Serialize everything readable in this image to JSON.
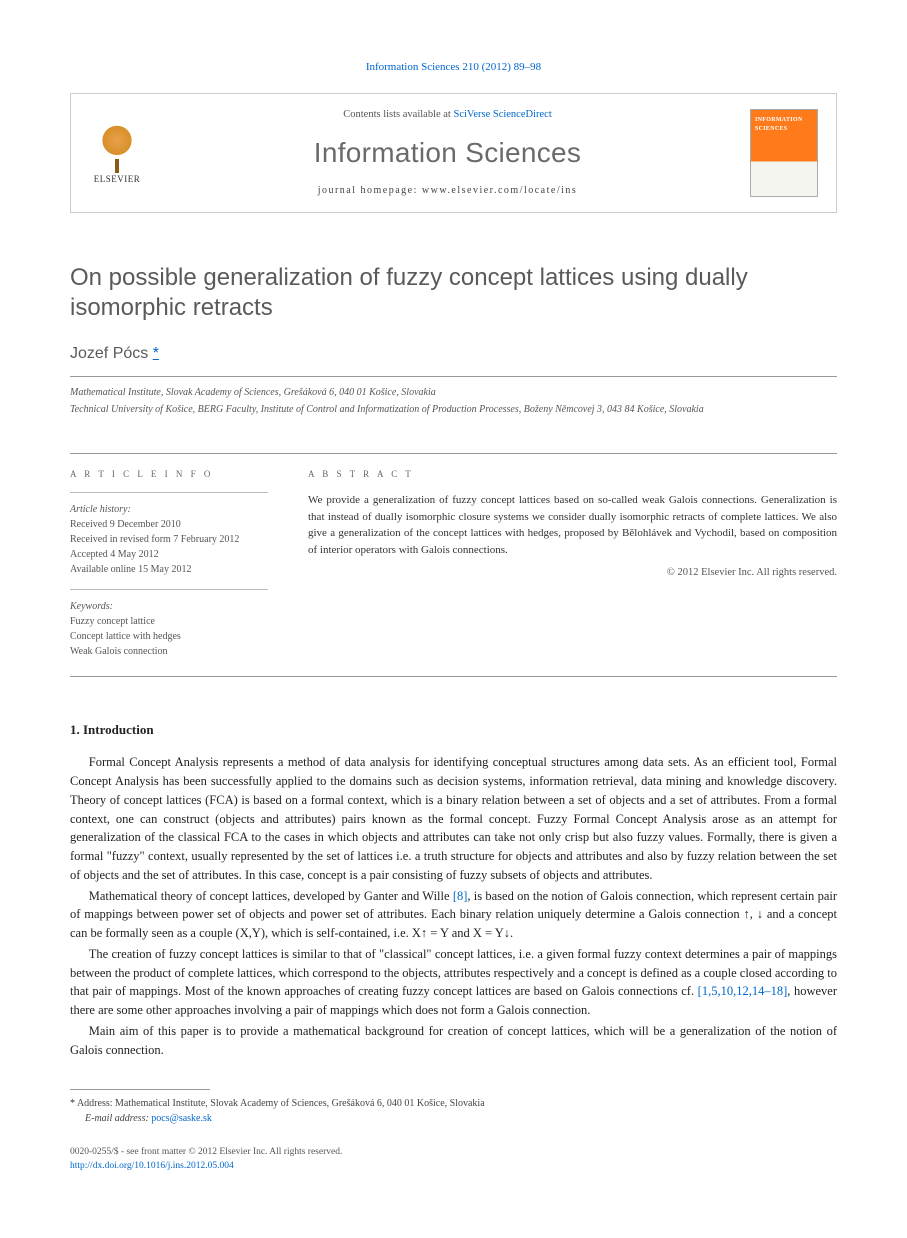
{
  "citation": "Information Sciences 210 (2012) 89–98",
  "header": {
    "contents_prefix": "Contents lists available at ",
    "contents_link": "SciVerse ScienceDirect",
    "journal": "Information Sciences",
    "homepage_label": "journal homepage: www.elsevier.com/locate/ins",
    "publisher": "ELSEVIER",
    "cover_title": "INFORMATION SCIENCES"
  },
  "title": "On possible generalization of fuzzy concept lattices using dually isomorphic retracts",
  "author": "Jozef Pócs",
  "author_mark": "*",
  "affiliations": [
    "Mathematical Institute, Slovak Academy of Sciences, Grešáková 6, 040 01 Košice, Slovakia",
    "Technical University of Košice, BERG Faculty, Institute of Control and Informatization of Production Processes, Boženy Němcovej 3, 043 84 Košice, Slovakia"
  ],
  "article_info": {
    "heading": "A R T I C L E   I N F O",
    "history_label": "Article history:",
    "history": [
      "Received 9 December 2010",
      "Received in revised form 7 February 2012",
      "Accepted 4 May 2012",
      "Available online 15 May 2012"
    ],
    "keywords_label": "Keywords:",
    "keywords": [
      "Fuzzy concept lattice",
      "Concept lattice with hedges",
      "Weak Galois connection"
    ]
  },
  "abstract": {
    "heading": "A B S T R A C T",
    "text": "We provide a generalization of fuzzy concept lattices based on so-called weak Galois connections. Generalization is that instead of dually isomorphic closure systems we consider dually isomorphic retracts of complete lattices. We also give a generalization of the concept lattices with hedges, proposed by Bělohlávek and Vychodil, based on composition of interior operators with Galois connections.",
    "copyright": "© 2012 Elsevier Inc. All rights reserved."
  },
  "section1": {
    "heading": "1. Introduction",
    "p1_a": "Formal Concept Analysis represents a method of data analysis for identifying conceptual structures among data sets. As an efficient tool, Formal Concept Analysis has been successfully applied to the domains such as decision systems, information retrieval, data mining and knowledge discovery. Theory of concept lattices (FCA) is based on a formal context, which is a binary relation between a set of objects and a set of attributes. From a formal context, one can construct (objects and attributes) pairs known as the formal concept. Fuzzy Formal Concept Analysis arose as an attempt for generalization of the classical FCA to the cases in which objects and attributes can take not only crisp but also fuzzy values. Formally, there is given a formal \"fuzzy\" context, usually represented by the set of lattices i.e. a truth structure for objects and attributes and also by fuzzy relation between the set of objects and the set of attributes. In this case, concept is a pair consisting of fuzzy subsets of objects and attributes.",
    "p2_a": "Mathematical theory of concept lattices, developed by Ganter and Wille ",
    "p2_ref": "[8]",
    "p2_b": ", is based on the notion of Galois connection, which represent certain pair of mappings between power set of objects and power set of attributes. Each binary relation uniquely determine a Galois connection ↑, ↓ and a concept can be formally seen as a couple (X,Y), which is self-contained, i.e. X↑ = Y and X = Y↓.",
    "p3_a": "The creation of fuzzy concept lattices is similar to that of \"classical\" concept lattices, i.e. a given formal fuzzy context determines a pair of mappings between the product of complete lattices, which correspond to the objects, attributes respectively and a concept is defined as a couple closed according to that pair of mappings. Most of the known approaches of creating fuzzy concept lattices are based on Galois connections cf. ",
    "p3_ref": "[1,5,10,12,14–18]",
    "p3_b": ", however there are some other approaches involving a pair of mappings which does not form a Galois connection.",
    "p4": "Main aim of this paper is to provide a mathematical background for creation of concept lattices, which will be a generalization of the notion of Galois connection."
  },
  "footnote": {
    "mark": "*",
    "address_label": "Address: ",
    "address": "Mathematical Institute, Slovak Academy of Sciences, Grešáková 6, 040 01 Košice, Slovakia",
    "email_label": "E-mail address: ",
    "email": "pocs@saske.sk"
  },
  "bottom": {
    "line1": "0020-0255/$ - see front matter © 2012 Elsevier Inc. All rights reserved.",
    "doi": "http://dx.doi.org/10.1016/j.ins.2012.05.004"
  },
  "colors": {
    "link": "#0066cc",
    "text": "#333333",
    "heading_gray": "#5a5a5a",
    "rule": "#999999",
    "cover_orange": "#ff7a1a"
  }
}
